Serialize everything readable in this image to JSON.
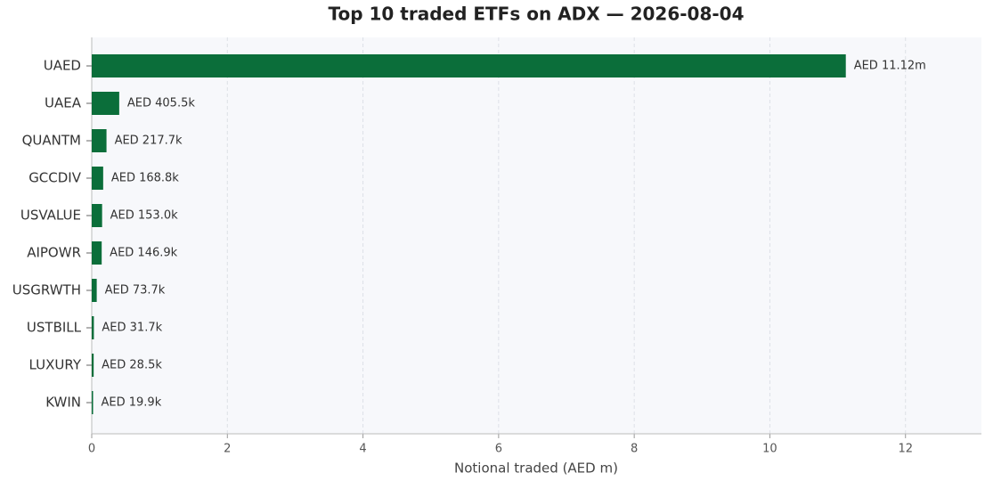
{
  "chart_data": {
    "type": "bar",
    "orientation": "horizontal",
    "title": "Top 10 traded ETFs on ADX — 2026-08-04",
    "x_label": "Notional traded (AED m)",
    "categories": [
      "UAED",
      "UAEA",
      "QUANTM",
      "GCCDIV",
      "USVALUE",
      "AIPOWR",
      "USGRWTH",
      "USTBILL",
      "LUXURY",
      "KWIN"
    ],
    "values": [
      11.12,
      0.4055,
      0.2177,
      0.1688,
      0.153,
      0.1469,
      0.0737,
      0.0317,
      0.0285,
      0.0199
    ],
    "value_labels": [
      "AED 11.12m",
      "AED 405.5k",
      "AED 217.7k",
      "AED 168.8k",
      "AED 153.0k",
      "AED 146.9k",
      "AED 73.7k",
      "AED 31.7k",
      "AED 28.5k",
      "AED 19.9k"
    ],
    "color": "#0b6e3a",
    "xlim": [
      0,
      13.12
    ],
    "xticks": [
      0,
      2,
      4,
      6,
      8,
      10,
      12
    ],
    "grid": true
  }
}
